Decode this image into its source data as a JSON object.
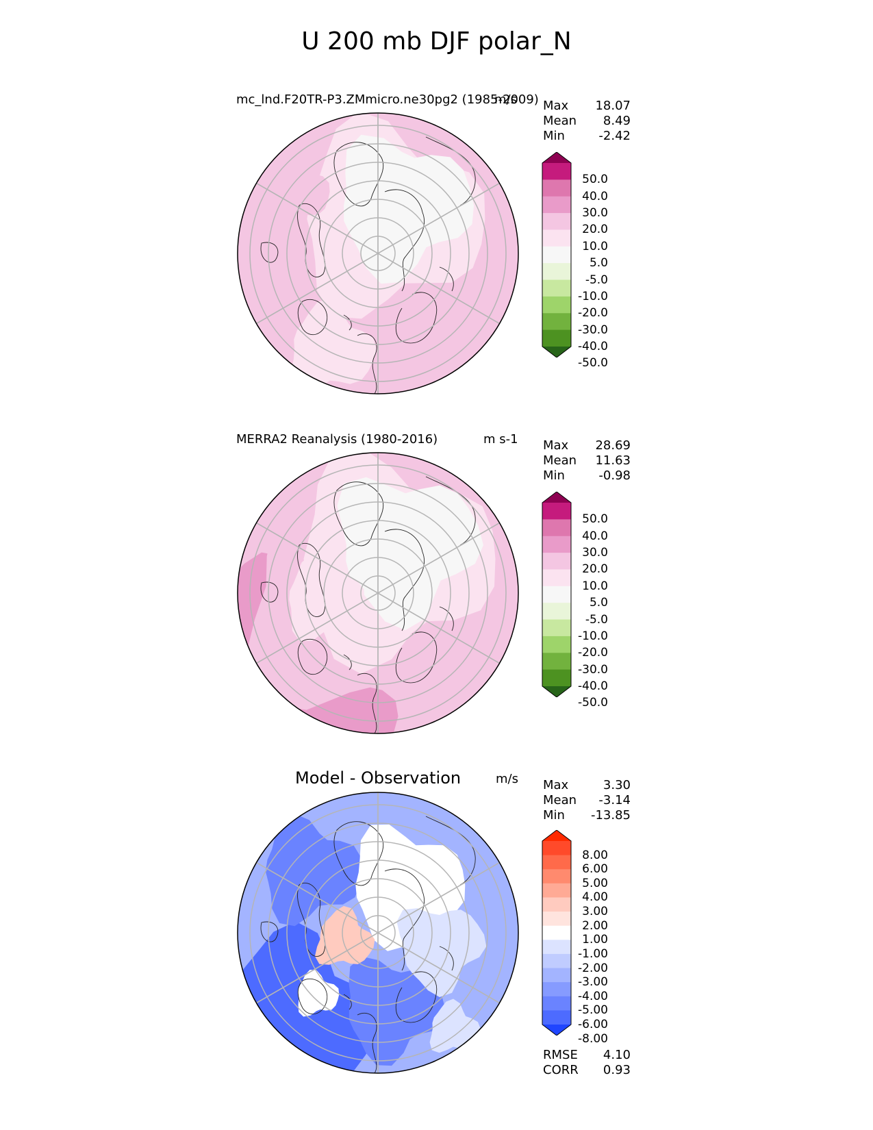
{
  "figure": {
    "title": "U 200 mb DJF polar_N"
  },
  "panels": [
    {
      "title": "mc_lnd.F20TR-P3.ZMmicro.ne30pg2 (1985-2009)",
      "units": "m/s",
      "stats": [
        {
          "label": "Max",
          "value": "18.07"
        },
        {
          "label": "Mean",
          "value": "8.49"
        },
        {
          "label": "Min",
          "value": "-2.42"
        }
      ]
    },
    {
      "title": "MERRA2 Reanalysis (1980-2016)",
      "units": "m s-1",
      "stats": [
        {
          "label": "Max",
          "value": "28.69"
        },
        {
          "label": "Mean",
          "value": "11.63"
        },
        {
          "label": "Min",
          "value": "-0.98"
        }
      ]
    },
    {
      "title": "Model - Observation",
      "units": "m/s",
      "stats": [
        {
          "label": "Max",
          "value": "3.30"
        },
        {
          "label": "Mean",
          "value": "-3.14"
        },
        {
          "label": "Min",
          "value": "-13.85"
        }
      ],
      "footer": [
        {
          "label": "RMSE",
          "value": "4.10"
        },
        {
          "label": "CORR",
          "value": "0.93"
        }
      ]
    }
  ],
  "colorbars": {
    "field": {
      "labels": [
        "50.0",
        "40.0",
        "30.0",
        "20.0",
        "10.0",
        "5.0",
        "-5.0",
        "-10.0",
        "-20.0",
        "-30.0",
        "-40.0",
        "-50.0"
      ],
      "colors": [
        "#8e0152",
        "#c51b7d",
        "#de77ae",
        "#e99bc9",
        "#f4c6e2",
        "#fbe3f0",
        "#f7f7f7",
        "#e9f5d9",
        "#c8e8a0",
        "#9ed46a",
        "#72b23e",
        "#4d9221",
        "#276419"
      ]
    },
    "diff": {
      "labels": [
        "8.00",
        "6.00",
        "5.00",
        "4.00",
        "3.00",
        "2.00",
        "1.00",
        "-1.00",
        "-2.00",
        "-3.00",
        "-4.00",
        "-5.00",
        "-6.00",
        "-8.00"
      ],
      "colors": [
        "#ff2a00",
        "#ff4a2a",
        "#ff6a4a",
        "#ff8a6e",
        "#ffaa95",
        "#ffcbbf",
        "#ffe4de",
        "#ffffff",
        "#dce3ff",
        "#c0ccff",
        "#a3b4ff",
        "#869bff",
        "#6a83ff",
        "#4d6bff",
        "#1f45ff"
      ]
    }
  }
}
